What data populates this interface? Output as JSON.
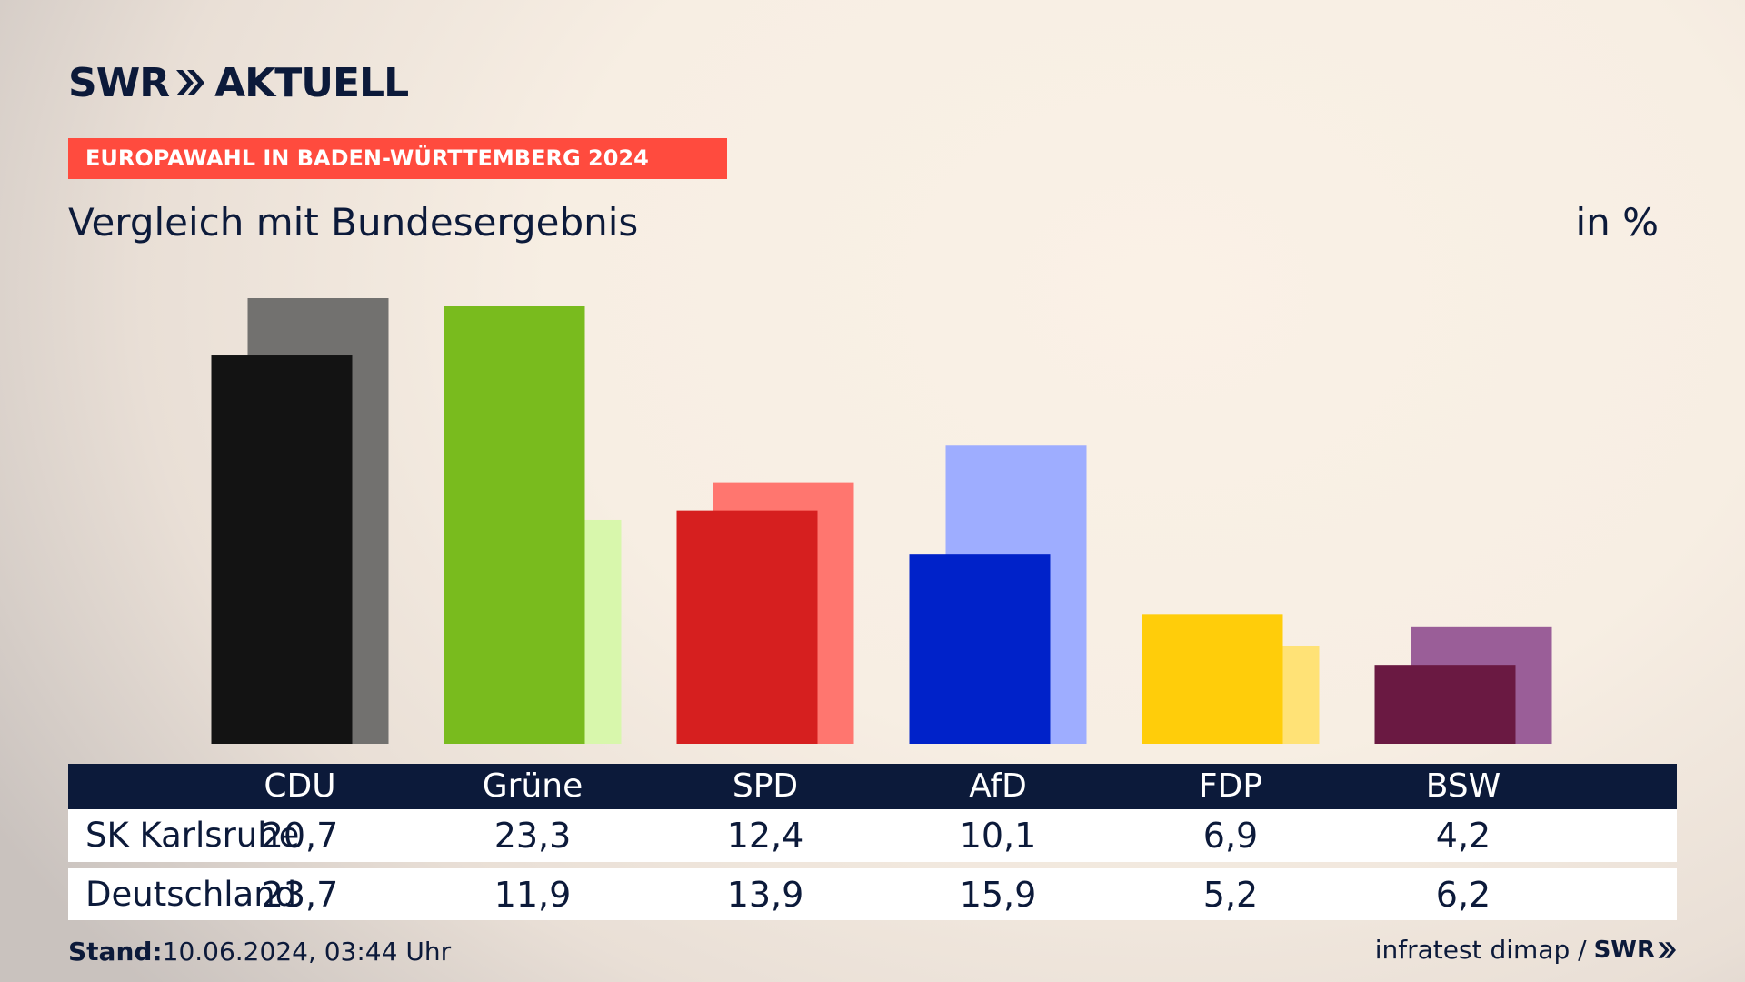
{
  "header": {
    "logo_primary": "SWR",
    "logo_secondary": "AKTUELL",
    "banner": "EUROPAWAHL IN BADEN-WÜRTTEMBERG 2024",
    "subtitle": "Vergleich mit Bundesergebnis",
    "unit": "in %"
  },
  "chart_data": {
    "type": "bar",
    "categories": [
      "CDU",
      "Grüne",
      "SPD",
      "AfD",
      "FDP",
      "BSW"
    ],
    "series": [
      {
        "name": "SK Karlsruhe",
        "values": [
          20.7,
          23.3,
          12.4,
          10.1,
          6.9,
          4.2
        ],
        "display": [
          "20,7",
          "23,3",
          "12,4",
          "10,1",
          "6,9",
          "4,2"
        ]
      },
      {
        "name": "Deutschland",
        "values": [
          23.7,
          11.9,
          13.9,
          15.9,
          5.2,
          6.2
        ],
        "display": [
          "23,7",
          "11,9",
          "13,9",
          "15,9",
          "5,2",
          "6,2"
        ]
      }
    ],
    "colors": {
      "front": [
        "#131313",
        "#79bb1e",
        "#d61f1f",
        "#0022c9",
        "#ffcd0a",
        "#6a1942"
      ],
      "back": [
        "#72716f",
        "#d8f7ac",
        "#ff766f",
        "#9eadff",
        "#ffe276",
        "#9a5e98"
      ]
    },
    "ylim": [
      0,
      23.7
    ]
  },
  "footer": {
    "stand_label": "Stand:",
    "stand_value": "10.06.2024, 03:44 Uhr",
    "source": "infratest dimap /",
    "source_logo": "SWR"
  }
}
